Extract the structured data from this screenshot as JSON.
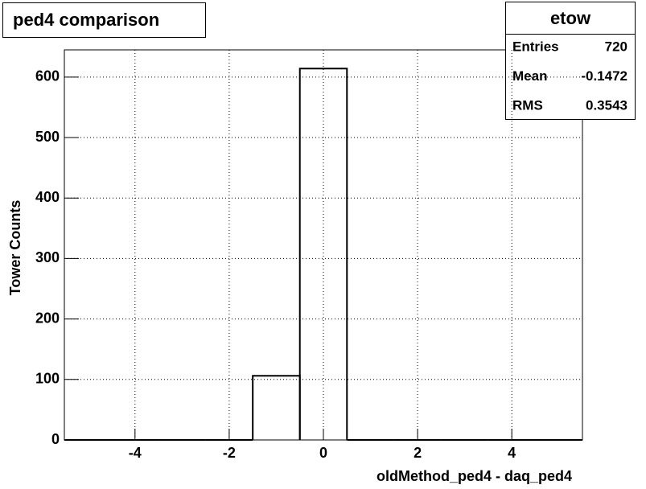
{
  "chart_data": {
    "type": "histogram",
    "title": "ped4 comparison",
    "x_label": "oldMethod_ped4 - daq_ped4",
    "y_label": "Tower Counts",
    "bins": [
      -5.5,
      -4.5,
      -3.5,
      -2.5,
      -1.5,
      -0.5,
      0.5,
      1.5,
      2.5,
      3.5,
      4.5,
      5.5
    ],
    "values": [
      0,
      0,
      0,
      0,
      106,
      614,
      0,
      0,
      0,
      0,
      0
    ],
    "color": "#000000",
    "xlim": [
      -5.5,
      5.5
    ],
    "xticks": [
      -4,
      -2,
      0,
      2,
      4
    ],
    "ylim": [
      0,
      645
    ],
    "yticks": [
      0,
      100,
      200,
      300,
      400,
      500,
      600
    ],
    "grid": true,
    "stats": {
      "title": "etow",
      "rows": [
        [
          "Entries",
          720
        ],
        [
          "Mean",
          -0.1472
        ],
        [
          "RMS",
          0.3543
        ]
      ]
    }
  }
}
